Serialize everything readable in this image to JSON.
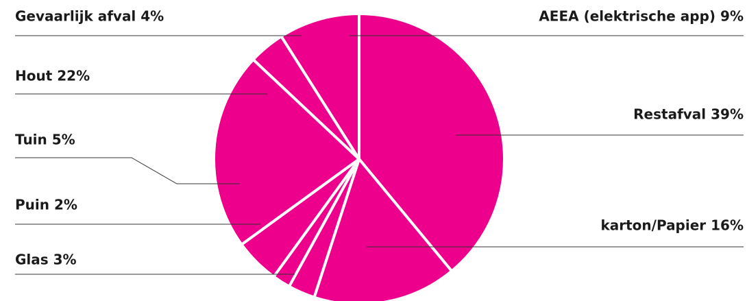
{
  "chart_data": {
    "type": "pie",
    "color": "#ec008c",
    "value_labels": [
      "Restafval 39%",
      "karton/Papier 16%",
      "Glas 3%",
      "Puin 2%",
      "Tuin 5%",
      "Hout 22%",
      "Gevaarlijk afval 4%",
      "AEEA (elektrische app) 9%"
    ],
    "values": [
      39,
      16,
      3,
      2,
      5,
      22,
      4,
      9
    ]
  }
}
